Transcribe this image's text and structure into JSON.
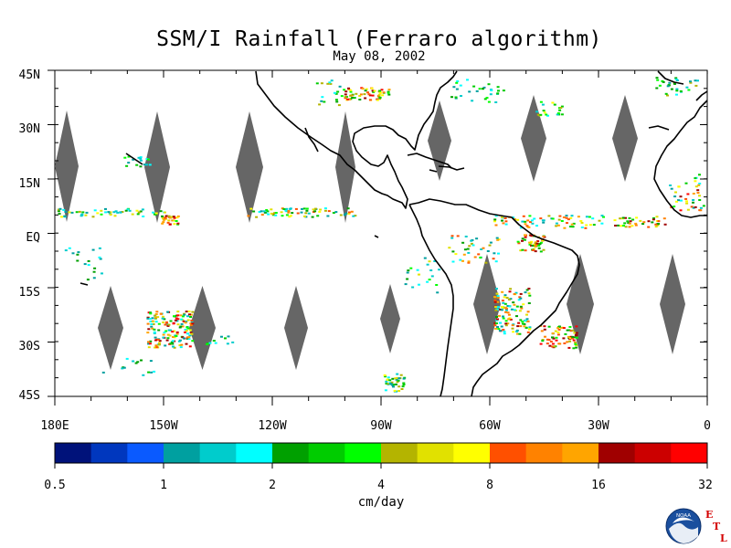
{
  "title": "SSM/I Rainfall (Ferraro algorithm)",
  "subtitle": "May 08, 2002",
  "map": {
    "lat_labels": [
      "45N",
      "30N",
      "15N",
      "EQ",
      "15S",
      "30S",
      "45S"
    ],
    "lon_labels": [
      "180E",
      "150W",
      "120W",
      "90W",
      "60W",
      "30W",
      "0"
    ],
    "lat_range": [
      -45,
      45
    ],
    "lon_range": [
      -180,
      0
    ],
    "gap_color": "#666666",
    "coast_color": "#000000"
  },
  "colorbar": {
    "colors": [
      "#00127a",
      "#0037be",
      "#0a5aff",
      "#00a0a0",
      "#00cccc",
      "#00ffff",
      "#00a000",
      "#00cc00",
      "#00ff00",
      "#b4b400",
      "#e1e100",
      "#ffff00",
      "#ff5000",
      "#ff8200",
      "#ffa500",
      "#a00000",
      "#cc0000",
      "#ff0000"
    ],
    "tick_labels": [
      "0.5",
      "1",
      "2",
      "4",
      "8",
      "16",
      "32"
    ],
    "units": "cm/day"
  },
  "logo": {
    "noaa_text": "NOAA",
    "etl_letters": [
      "E",
      "T",
      "L"
    ],
    "etl_color": "#d40000"
  }
}
